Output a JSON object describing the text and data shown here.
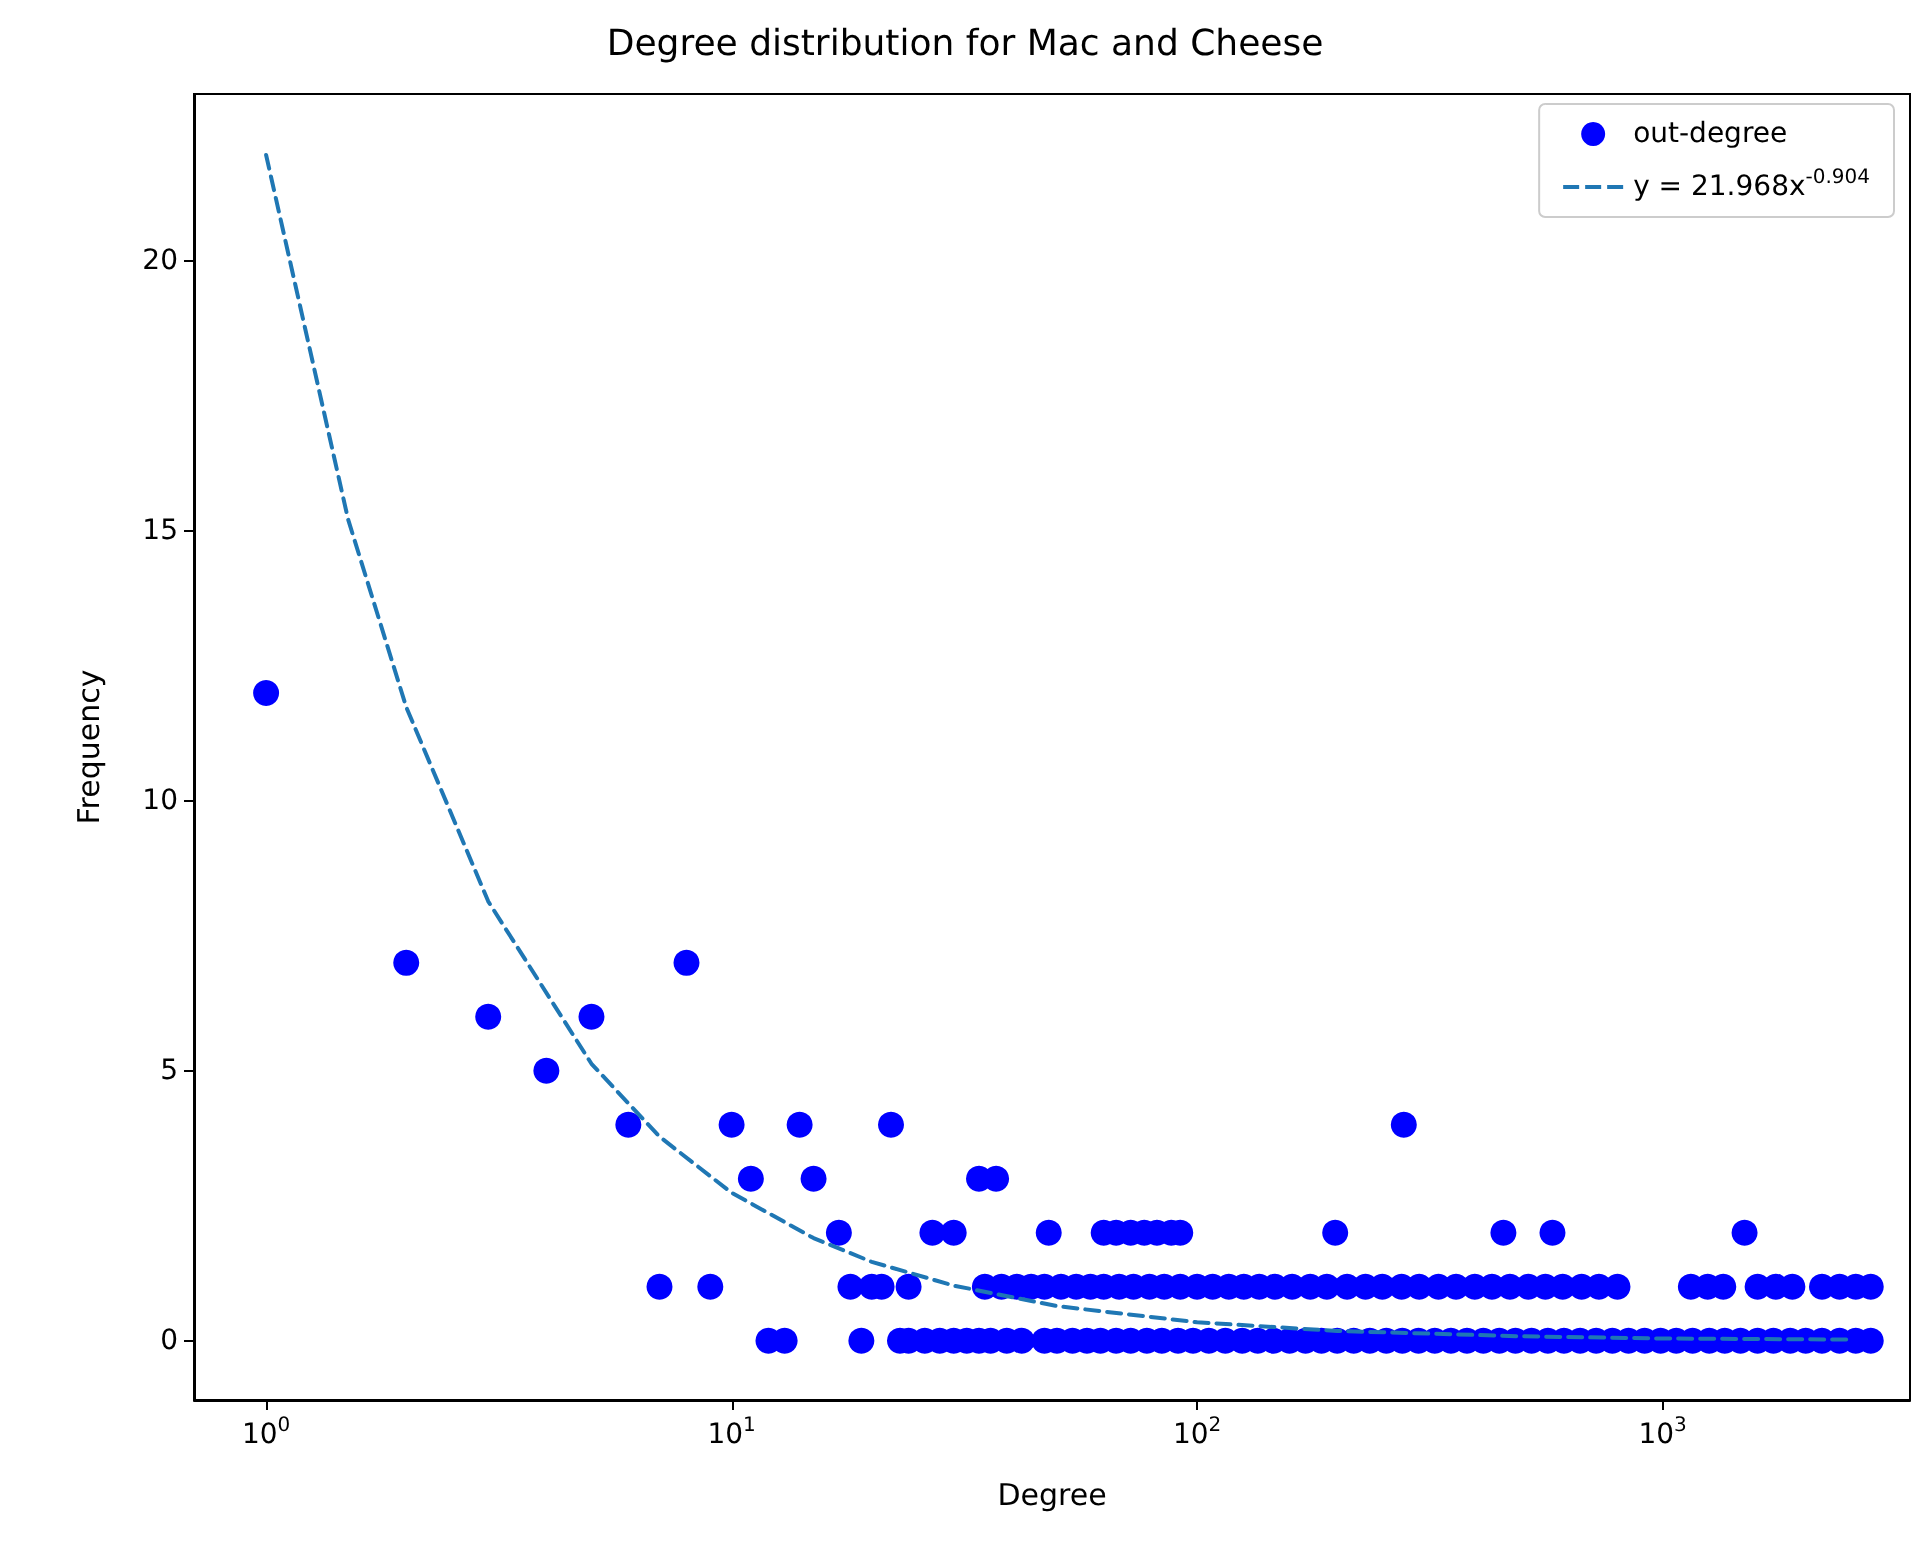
{
  "chart_data": {
    "type": "scatter",
    "title": "Degree distribution for Mac and Cheese",
    "xlabel": "Degree",
    "ylabel": "Frequency",
    "log": "x",
    "grid": false,
    "legend": "top right",
    "marker": "circle",
    "xlim": [
      0.7,
      3400
    ],
    "xticks": [
      {
        "value": 1,
        "label": "10$^{0}$"
      },
      {
        "value": 10,
        "label": "10$^{1}$"
      },
      {
        "value": 100,
        "label": "10$^{2}$"
      },
      {
        "value": 1000,
        "label": "10$^{3}$"
      }
    ],
    "ylim": [
      -1.1,
      23.1
    ],
    "yticks": [
      0,
      5,
      10,
      15,
      20
    ],
    "series": [
      {
        "name": "out-degree",
        "color": "#0000ff",
        "x": [
          1,
          2,
          8,
          3,
          5,
          4,
          6,
          10,
          14,
          22,
          278,
          11,
          15,
          34,
          37,
          17,
          27,
          30,
          48,
          63,
          67,
          72,
          77,
          82,
          88,
          92,
          198,
          455,
          580,
          1500,
          7,
          9,
          18,
          20,
          21,
          24,
          35,
          38,
          41,
          44,
          47,
          51,
          55,
          59,
          63,
          68,
          73,
          79,
          85,
          92,
          100,
          108,
          117,
          126,
          136,
          147,
          160,
          175,
          190,
          210,
          230,
          250,
          275,
          300,
          330,
          360,
          395,
          430,
          470,
          515,
          560,
          610,
          670,
          730,
          800,
          1150,
          1250,
          1350,
          1600,
          1750,
          1900,
          2200,
          2400,
          2600,
          2800,
          12,
          13,
          19,
          23,
          24,
          26,
          28,
          30,
          32,
          34,
          36,
          39,
          42,
          47,
          50,
          54,
          58,
          62,
          67,
          72,
          78,
          84,
          91,
          98,
          106,
          115,
          125,
          135,
          146,
          158,
          171,
          185,
          200,
          217,
          235,
          255,
          276,
          299,
          324,
          351,
          380,
          412,
          446,
          483,
          523,
          567,
          614,
          665,
          720,
          780,
          845,
          915,
          990,
          1070,
          1160,
          1260,
          1360,
          1470,
          1600,
          1730,
          1880,
          2030,
          2200,
          2400,
          2600,
          2800
        ],
        "values": [
          12,
          7,
          7,
          6,
          6,
          5,
          4,
          4,
          4,
          4,
          4,
          3,
          3,
          3,
          3,
          2,
          2,
          2,
          2,
          2,
          2,
          2,
          2,
          2,
          2,
          2,
          2,
          2,
          2,
          2,
          1,
          1,
          1,
          1,
          1,
          1,
          1,
          1,
          1,
          1,
          1,
          1,
          1,
          1,
          1,
          1,
          1,
          1,
          1,
          1,
          1,
          1,
          1,
          1,
          1,
          1,
          1,
          1,
          1,
          1,
          1,
          1,
          1,
          1,
          1,
          1,
          1,
          1,
          1,
          1,
          1,
          1,
          1,
          1,
          1,
          1,
          1,
          1,
          1,
          1,
          1,
          1,
          1,
          1,
          1,
          0,
          0,
          0,
          0,
          0,
          0,
          0,
          0,
          0,
          0,
          0,
          0,
          0,
          0,
          0,
          0,
          0,
          0,
          0,
          0,
          0,
          0,
          0,
          0,
          0,
          0,
          0,
          0,
          0,
          0,
          0,
          0,
          0,
          0,
          0,
          0,
          0,
          0,
          0,
          0,
          0,
          0,
          0,
          0,
          0,
          0,
          0,
          0,
          0,
          0,
          0,
          0,
          0,
          0,
          0,
          0,
          0,
          0,
          0,
          0,
          0,
          0,
          0,
          0,
          0,
          0
        ]
      },
      {
        "name": "y = 21.968x$^{-0.904}$",
        "type": "line",
        "color": "#1f77b4",
        "line_style": "dashed",
        "marker": "none",
        "x": [
          1,
          1.5,
          2,
          3,
          5,
          7,
          10,
          15,
          20,
          30,
          50,
          100,
          200,
          500,
          1000,
          2500
        ],
        "values": [
          21.97,
          15.22,
          11.74,
          8.14,
          5.13,
          3.78,
          2.74,
          1.9,
          1.46,
          1.02,
          0.64,
          0.34,
          0.18,
          0.08,
          0.04,
          0.02
        ]
      }
    ]
  }
}
